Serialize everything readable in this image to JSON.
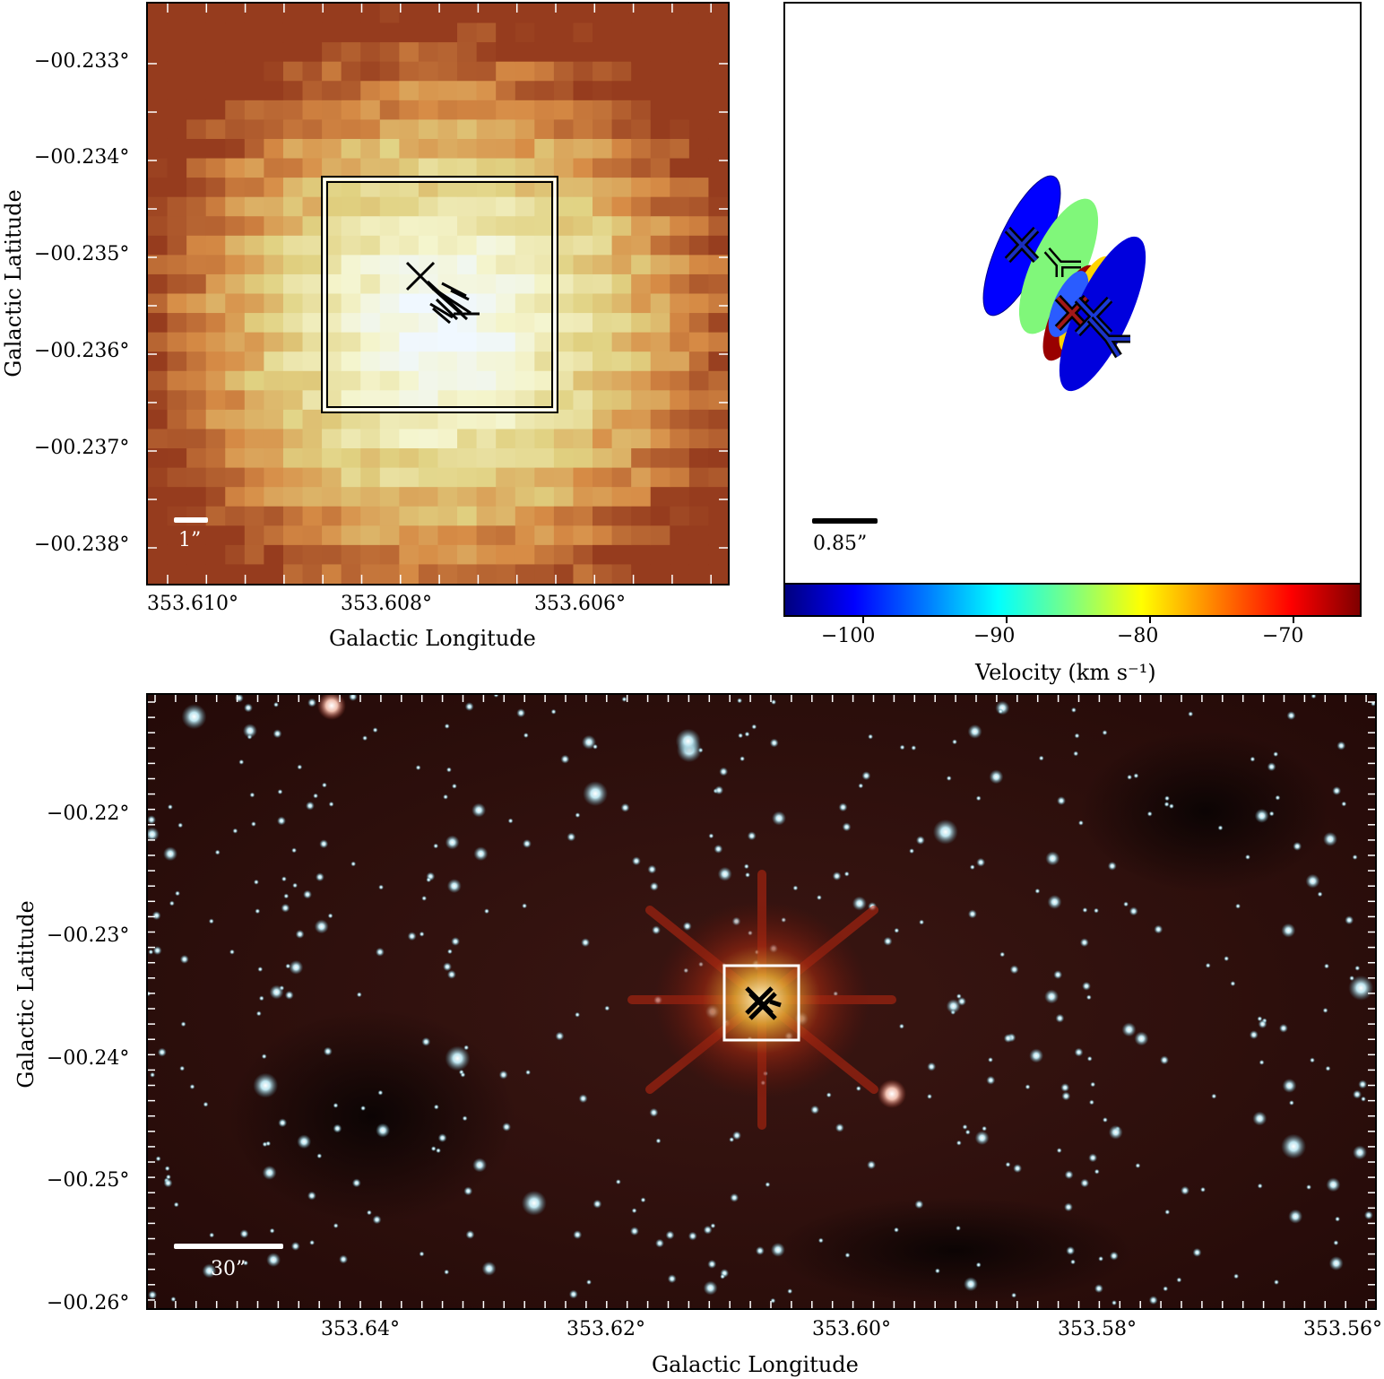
{
  "top_left": {
    "ylabel": "Galactic Latitude",
    "xlabel": "Galactic Longitude",
    "y_ticks": [
      "−00.233°",
      "−00.234°",
      "−00.235°",
      "−00.236°",
      "−00.237°",
      "−00.238°"
    ],
    "x_ticks": [
      "353.610°",
      "353.608°",
      "353.606°"
    ],
    "scalebar_label": "1”"
  },
  "top_right": {
    "scalebar_label": "0.85”",
    "colorbar": {
      "label": "Velocity (km s⁻¹)",
      "ticks": [
        "−100",
        "−90",
        "−80",
        "−70"
      ],
      "range": [
        -105,
        -65
      ]
    }
  },
  "bottom": {
    "ylabel": "Galactic Latitude",
    "xlabel": "Galactic Longitude",
    "y_ticks": [
      "−00.22°",
      "−00.23°",
      "−00.24°",
      "−00.25°",
      "−00.26°"
    ],
    "x_ticks": [
      "353.64°",
      "353.62°",
      "353.60°",
      "353.58°",
      "353.56°"
    ],
    "scalebar_label": "30”"
  }
}
